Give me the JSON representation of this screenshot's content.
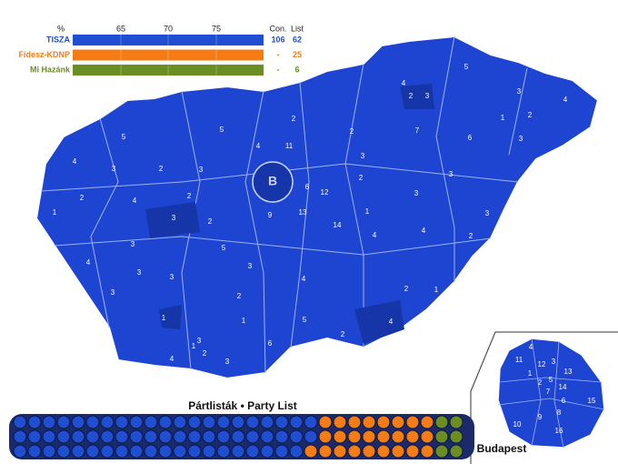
{
  "legend": {
    "header": {
      "percent": "%",
      "ticks": [
        "65",
        "70",
        "75"
      ],
      "con": "Con.",
      "list": "List"
    },
    "rows": [
      {
        "name": "TISZA",
        "con": 106,
        "list": 62,
        "color": "#1f4fd0"
      },
      {
        "name": "Fidesz-KDNP",
        "con": "-",
        "list": 25,
        "color": "#f57c14"
      },
      {
        "name": "Mi Hazánk",
        "con": "-",
        "list": 6,
        "color": "#6b8e23"
      }
    ]
  },
  "party_list": {
    "title": "Pártlisták • Party List"
  },
  "map": {
    "budapest_marker": "B",
    "district_labels": [
      "5",
      "4",
      "3",
      "4",
      "2",
      "3",
      "1",
      "2",
      "2",
      "5",
      "5",
      "2",
      "7",
      "6",
      "3",
      "4",
      "3",
      "2",
      "3",
      "4",
      "11",
      "3",
      "6",
      "2",
      "3",
      "2",
      "4",
      "2",
      "12",
      "1",
      "3",
      "9",
      "13",
      "14",
      "1",
      "3",
      "3",
      "2",
      "3",
      "5",
      "4",
      "4",
      "2",
      "3",
      "4",
      "3",
      "3",
      "4",
      "1",
      "3",
      "2",
      "2",
      "3",
      "1",
      "5",
      "4",
      "2",
      "1",
      "6",
      "3",
      "2",
      "4",
      "3",
      "1"
    ]
  },
  "budapest": {
    "title": "Budapest",
    "district_labels": [
      "11",
      "4",
      "12",
      "1",
      "3",
      "13",
      "14",
      "2",
      "5",
      "7",
      "6",
      "9",
      "8",
      "15",
      "10",
      "16"
    ]
  }
}
